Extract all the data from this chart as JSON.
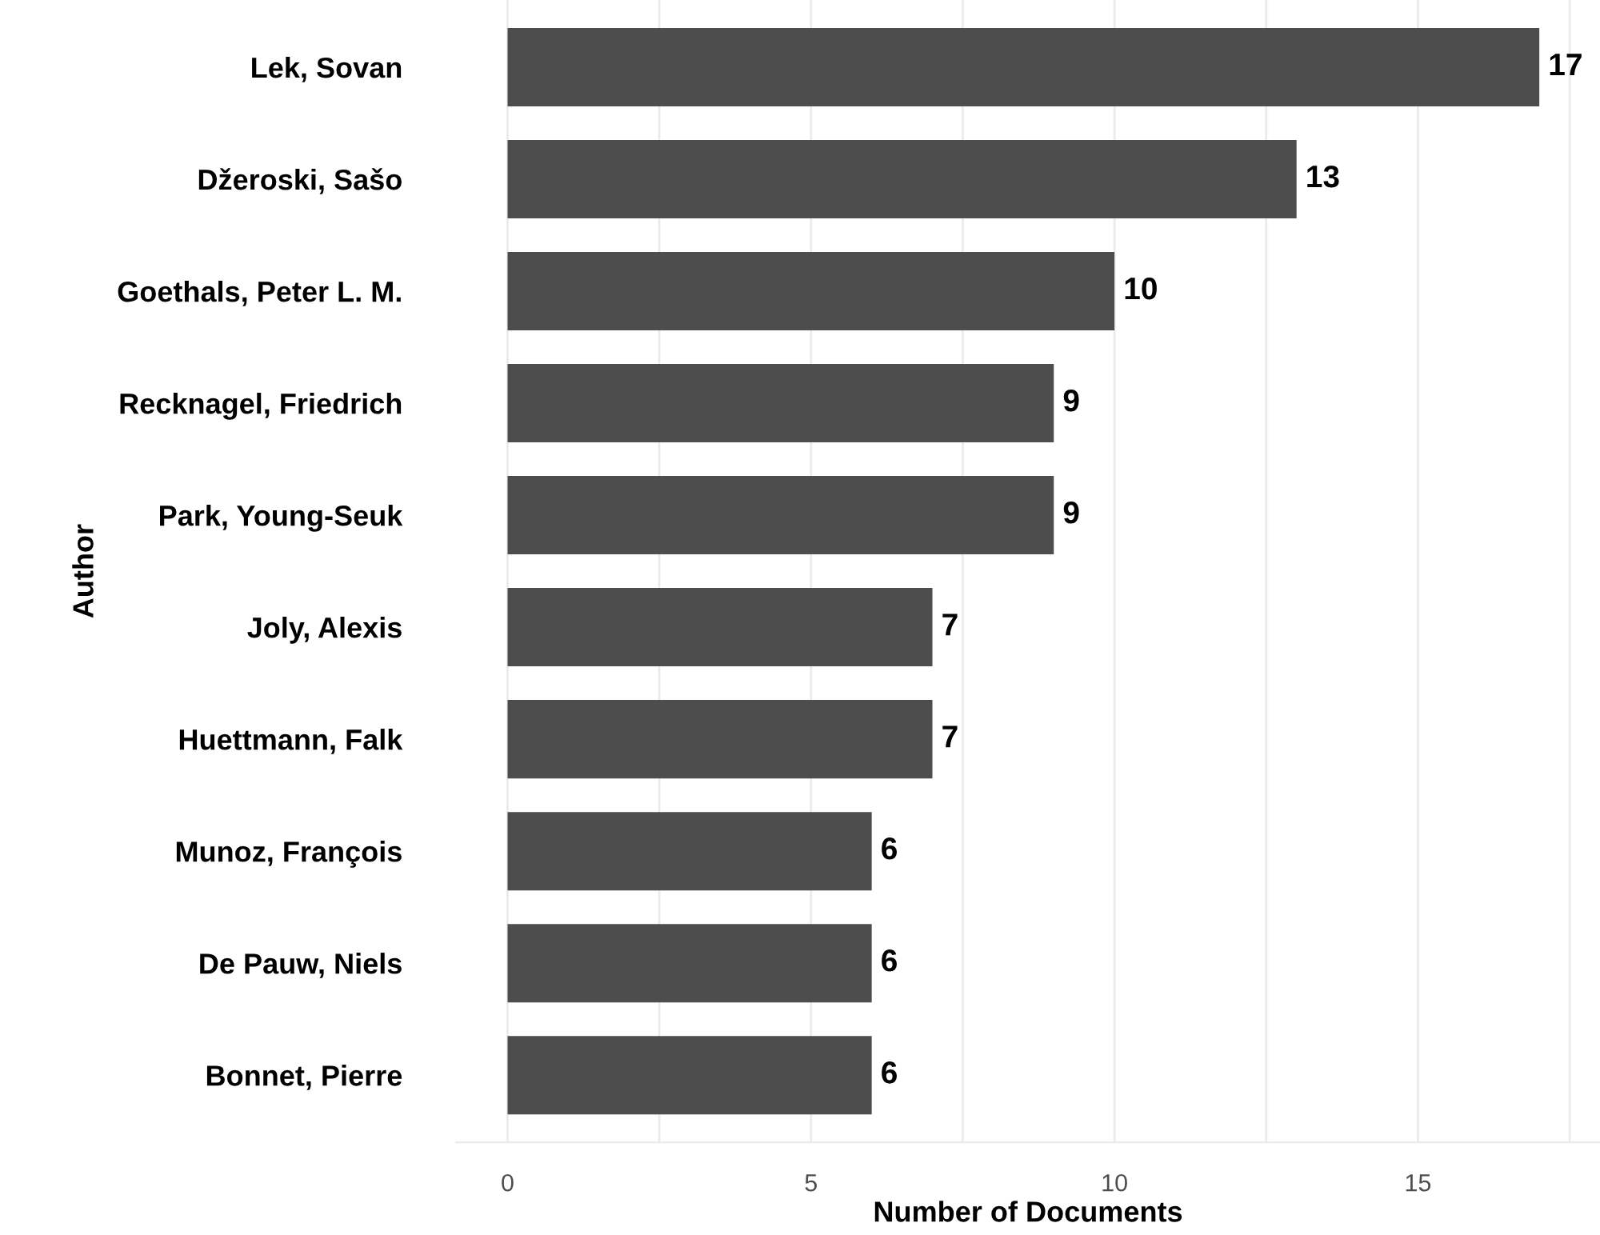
{
  "chart_data": {
    "type": "bar",
    "orientation": "horizontal",
    "xlabel": "Number of Documents",
    "ylabel": "Author",
    "categories": [
      "Lek, Sovan",
      "Džeroski, Sašo",
      "Goethals, Peter L. M.",
      "Recknagel, Friedrich",
      "Park, Young-Seuk",
      "Joly, Alexis",
      "Huettmann, Falk",
      "Munoz, François",
      "De Pauw, Niels",
      "Bonnet, Pierre"
    ],
    "values": [
      17,
      13,
      10,
      9,
      9,
      7,
      7,
      6,
      6,
      6
    ],
    "color": "#4d4d4d",
    "xlim": [
      -0.85,
      18.0
    ],
    "xticks": [
      0,
      {
        "value": 2.5,
        "label": null
      },
      5,
      {
        "value": 7.5,
        "label": null
      },
      10,
      {
        "value": 12.5,
        "label": null
      },
      15,
      {
        "value": 17.5,
        "label": null
      }
    ],
    "grid": "x",
    "data_labels": true
  }
}
